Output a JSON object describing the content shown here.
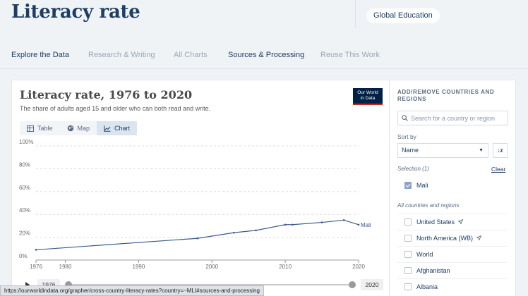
{
  "header": {
    "title": "Literacy rate",
    "topic": "Global Education",
    "tabs": [
      {
        "label": "Explore the Data"
      },
      {
        "label": "Research & Writing"
      },
      {
        "label": "All Charts"
      },
      {
        "label": "Sources & Processing"
      },
      {
        "label": "Reuse This Work"
      }
    ]
  },
  "chart": {
    "title": "Literacy rate, 1976 to 2020",
    "subtitle": "The share of adults aged 15 and older who can both read and write.",
    "logo_line1": "Our World",
    "logo_line2": "in Data",
    "view_tabs": [
      {
        "label": "Table",
        "icon": "table-icon"
      },
      {
        "label": "Map",
        "icon": "globe-icon"
      },
      {
        "label": "Chart",
        "icon": "line-chart-icon"
      }
    ],
    "active_view": "Chart"
  },
  "timeline": {
    "start_label": "1976",
    "end_label": "2020",
    "play_icon": "play-icon"
  },
  "chart_data": {
    "type": "line",
    "title": "Literacy rate, 1976 to 2020",
    "subtitle": "The share of adults aged 15 and older who can both read and write.",
    "xlabel": "",
    "ylabel": "",
    "x_ticks": [
      1976,
      1980,
      1990,
      2000,
      2010,
      2020
    ],
    "y_ticks": [
      0,
      20,
      40,
      60,
      80,
      100
    ],
    "y_tick_labels": [
      "0%",
      "20%",
      "40%",
      "60%",
      "80%",
      "100%"
    ],
    "xlim": [
      1976,
      2020
    ],
    "ylim": [
      0,
      100
    ],
    "grid": true,
    "series": [
      {
        "name": "Mali",
        "color": "#3c5a8a",
        "x": [
          1976,
          1998,
          2003,
          2006,
          2010,
          2011,
          2015,
          2018,
          2020
        ],
        "y": [
          9,
          19,
          24,
          26,
          31,
          31,
          33,
          35,
          31
        ]
      }
    ]
  },
  "sidebar": {
    "heading": "ADD/REMOVE COUNTRIES AND REGIONS",
    "search_placeholder": "Search for a country or region",
    "sort_label": "Sort by",
    "sort_value": "Name",
    "sort_toggle": "↓z",
    "selection_label": "Selection (1)",
    "clear_label": "Clear",
    "selected": [
      {
        "name": "Mali"
      }
    ],
    "all_label": "All countries and regions",
    "entities": [
      {
        "name": "United States",
        "arrow": true
      },
      {
        "name": "North America (WB)",
        "arrow": true
      },
      {
        "name": "World",
        "arrow": false
      },
      {
        "name": "Afghanistan",
        "arrow": false
      },
      {
        "name": "Albania",
        "arrow": false
      }
    ]
  },
  "status_bar": {
    "url": "https://ourworldindata.org/grapher/cross-country-literacy-rates?country=~MLI#sources-and-processing"
  },
  "colors": {
    "brand_navy": "#1d3d63",
    "line": "#3c5a8a",
    "logo_bg": "#002147",
    "logo_accent": "#ce261e"
  }
}
